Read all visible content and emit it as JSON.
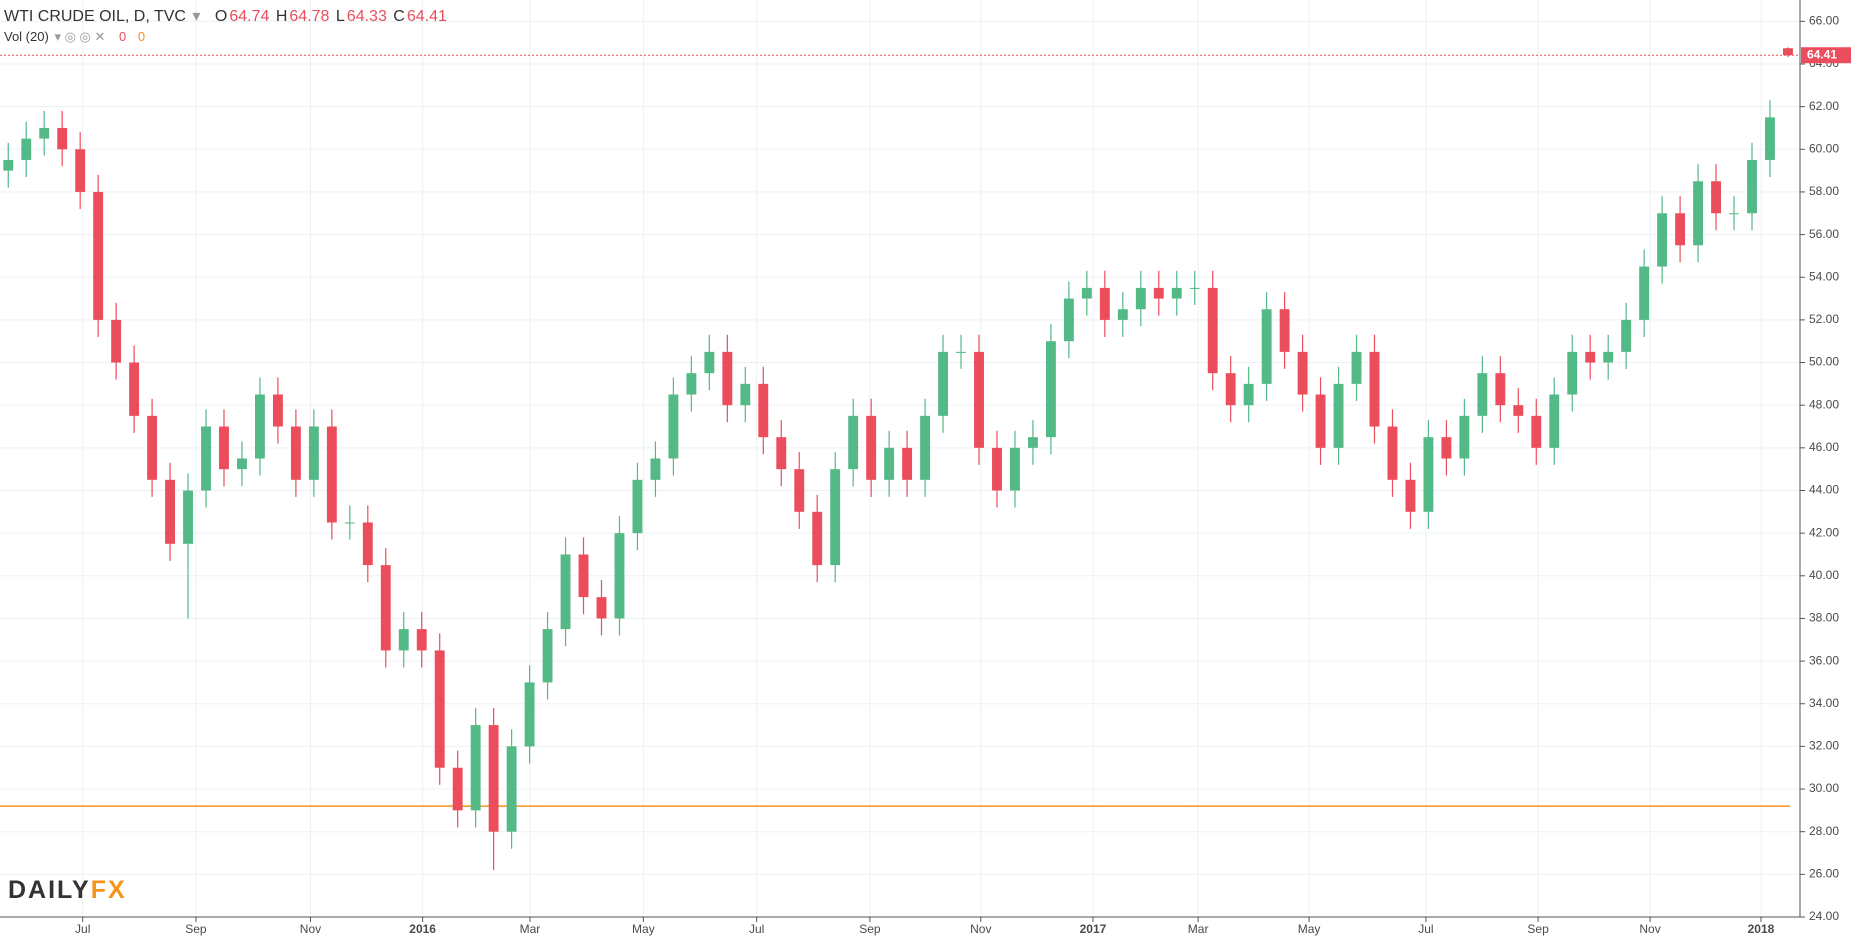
{
  "chart_data": {
    "type": "candlestick",
    "title": "WTI CRUDE OIL, D, TVC",
    "ohlc_labels": [
      "O",
      "H",
      "L",
      "C"
    ],
    "indicator": {
      "name": "Vol (20)",
      "values": [
        0,
        0
      ]
    },
    "logo": [
      "DAILY",
      "FX"
    ],
    "up_color": "#53b987",
    "down_color": "#eb4d5c",
    "last_line_color": "#eb4d5c",
    "hline": {
      "value": 29.2,
      "color": "#f7931a"
    },
    "categories": [
      null,
      null,
      null,
      null,
      null,
      null,
      null,
      null,
      null,
      null,
      null,
      null,
      null,
      null,
      null,
      null,
      null,
      null,
      null,
      null,
      null,
      null,
      null,
      null,
      null,
      null,
      null,
      null,
      null,
      null,
      null,
      null,
      null,
      null,
      null,
      null,
      null,
      null,
      null,
      null,
      null,
      null,
      null,
      null,
      null,
      null,
      null,
      null,
      null,
      null,
      null,
      null,
      null,
      null,
      null,
      null,
      null,
      null,
      null,
      null,
      null,
      null,
      null,
      null,
      null,
      null,
      null,
      null,
      null,
      null,
      null,
      null,
      null,
      null,
      null,
      null,
      null,
      null,
      null,
      null,
      null,
      null,
      null,
      null,
      null,
      null,
      null,
      null,
      null,
      null,
      null,
      null,
      null,
      null,
      null,
      null,
      null,
      null,
      null,
      null
    ],
    "open": [
      59,
      59.5,
      60.5,
      61,
      60,
      58,
      52,
      50,
      47.5,
      44.5,
      41.5,
      44,
      47,
      45,
      45.5,
      48.5,
      47,
      44.5,
      47,
      42.5,
      42.5,
      40.5,
      36.5,
      37.5,
      36.5,
      31,
      29,
      33,
      28,
      32,
      35,
      37.5,
      41,
      39,
      38,
      42,
      44.5,
      45.5,
      48.5,
      49.5,
      50.5,
      48,
      49,
      46.5,
      45,
      43,
      40.5,
      45,
      47.5,
      44.5,
      46,
      44.5,
      47.5,
      50.5,
      50.5,
      46,
      44,
      46,
      46.5,
      51,
      53,
      53.5,
      52,
      52.5,
      53.5,
      53,
      53.5,
      53.5,
      49.5,
      48,
      49,
      52.5,
      50.5,
      48.5,
      46,
      49,
      50.5,
      47,
      44.5,
      43,
      46.5,
      45.5,
      47.5,
      49.5,
      48,
      47.5,
      46,
      48.5,
      50.5,
      50,
      50.5,
      52,
      54.5,
      57,
      55.5,
      58.5,
      57,
      57,
      59.5,
      64.74
    ],
    "high": [
      60.3,
      61.3,
      61.8,
      61.8,
      60.8,
      58.8,
      52.8,
      50.8,
      48.3,
      45.3,
      44.8,
      47.8,
      47.8,
      46.3,
      49.3,
      49.3,
      47.8,
      47.8,
      47.8,
      43.3,
      43.3,
      41.3,
      38.3,
      38.3,
      37.3,
      31.8,
      33.8,
      33.8,
      32.8,
      35.8,
      38.3,
      41.8,
      41.8,
      39.8,
      42.8,
      45.3,
      46.3,
      49.3,
      50.3,
      51.3,
      51.3,
      49.8,
      49.8,
      47.3,
      45.8,
      43.8,
      45.8,
      48.3,
      48.3,
      46.8,
      46.8,
      48.3,
      51.3,
      51.3,
      51.3,
      46.8,
      46.8,
      47.3,
      51.8,
      53.8,
      54.3,
      54.3,
      53.3,
      54.3,
      54.3,
      54.3,
      54.3,
      54.3,
      50.3,
      49.8,
      53.3,
      53.3,
      51.3,
      49.3,
      49.8,
      51.3,
      51.3,
      47.8,
      45.3,
      47.3,
      47.3,
      48.3,
      50.3,
      50.3,
      48.8,
      48.3,
      49.3,
      51.3,
      51.3,
      51.3,
      52.8,
      55.3,
      57.8,
      57.8,
      59.3,
      59.3,
      57.8,
      60.3,
      62.3,
      64.78
    ],
    "low": [
      58.2,
      58.7,
      59.7,
      59.2,
      57.2,
      51.2,
      49.2,
      46.7,
      43.7,
      40.7,
      38,
      43.2,
      44.2,
      44.2,
      44.7,
      46.2,
      43.7,
      43.7,
      41.7,
      41.7,
      39.7,
      35.7,
      35.7,
      35.7,
      30.2,
      28.2,
      28.2,
      26.2,
      27.2,
      31.2,
      34.2,
      36.7,
      38.2,
      37.2,
      37.2,
      41.2,
      43.7,
      44.7,
      47.7,
      48.7,
      47.2,
      47.2,
      45.7,
      44.2,
      42.2,
      39.7,
      39.7,
      44.2,
      43.7,
      43.7,
      43.7,
      43.7,
      46.7,
      49.7,
      45.2,
      43.2,
      43.2,
      45.2,
      45.7,
      50.2,
      52.2,
      51.2,
      51.2,
      51.7,
      52.2,
      52.2,
      52.7,
      48.7,
      47.2,
      47.2,
      48.2,
      49.7,
      47.7,
      45.2,
      45.2,
      48.2,
      46.2,
      43.7,
      42.2,
      42.2,
      44.7,
      44.7,
      46.7,
      47.2,
      46.7,
      45.2,
      45.2,
      47.7,
      49.2,
      49.2,
      49.7,
      51.2,
      53.7,
      54.7,
      54.7,
      56.2,
      56.2,
      56.2,
      58.7,
      64.33
    ],
    "close": [
      59.5,
      60.5,
      61,
      60,
      58,
      52,
      50,
      47.5,
      44.5,
      41.5,
      44,
      47,
      45,
      45.5,
      48.5,
      47,
      44.5,
      47,
      42.5,
      42.5,
      40.5,
      36.5,
      37.5,
      36.5,
      31,
      29,
      33,
      28,
      32,
      35,
      37.5,
      41,
      39,
      38,
      42,
      44.5,
      45.5,
      48.5,
      49.5,
      50.5,
      48,
      49,
      46.5,
      45,
      43,
      40.5,
      45,
      47.5,
      44.5,
      46,
      44.5,
      47.5,
      50.5,
      50.5,
      46,
      44,
      46,
      46.5,
      51,
      53,
      53.5,
      52,
      52.5,
      53.5,
      53,
      53.5,
      53.5,
      49.5,
      48,
      49,
      52.5,
      50.5,
      48.5,
      46,
      49,
      50.5,
      47,
      44.5,
      43,
      46.5,
      45.5,
      47.5,
      49.5,
      48,
      47.5,
      46,
      48.5,
      50.5,
      50,
      50.5,
      52,
      54.5,
      57,
      55.5,
      58.5,
      57,
      57,
      59.5,
      61.5,
      64.41
    ],
    "xlim": [
      -0.46,
      99.67
    ],
    "xticks": [
      {
        "value": 4.14,
        "label": "Jul"
      },
      {
        "value": 10.44,
        "label": "Sep"
      },
      {
        "value": 16.81,
        "label": "Nov"
      },
      {
        "value": 23.05,
        "label": "2016"
      },
      {
        "value": 29.02,
        "label": "Mar"
      },
      {
        "value": 35.33,
        "label": "May"
      },
      {
        "value": 41.63,
        "label": "Jul"
      },
      {
        "value": 47.93,
        "label": "Sep"
      },
      {
        "value": 54.1,
        "label": "Nov"
      },
      {
        "value": 60.34,
        "label": "2017"
      },
      {
        "value": 66.19,
        "label": "Mar"
      },
      {
        "value": 72.36,
        "label": "May"
      },
      {
        "value": 78.86,
        "label": "Jul"
      },
      {
        "value": 85.1,
        "label": "Sep"
      },
      {
        "value": 91.33,
        "label": "Nov"
      },
      {
        "value": 97.5,
        "label": "2018"
      }
    ],
    "ylim": [
      24,
      67
    ],
    "yticks": [
      {
        "value": 24,
        "label": "24.00"
      },
      {
        "value": 26,
        "label": "26.00"
      },
      {
        "value": 28,
        "label": "28.00"
      },
      {
        "value": 30,
        "label": "30.00"
      },
      {
        "value": 32,
        "label": "32.00"
      },
      {
        "value": 34,
        "label": "34.00"
      },
      {
        "value": 36,
        "label": "36.00"
      },
      {
        "value": 38,
        "label": "38.00"
      },
      {
        "value": 40,
        "label": "40.00"
      },
      {
        "value": 42,
        "label": "42.00"
      },
      {
        "value": 44,
        "label": "44.00"
      },
      {
        "value": 46,
        "label": "46.00"
      },
      {
        "value": 48,
        "label": "48.00"
      },
      {
        "value": 50,
        "label": "50.00"
      },
      {
        "value": 52,
        "label": "52.00"
      },
      {
        "value": 54,
        "label": "54.00"
      },
      {
        "value": 56,
        "label": "56.00"
      },
      {
        "value": 58,
        "label": "58.00"
      },
      {
        "value": 60,
        "label": "60.00"
      },
      {
        "value": 62,
        "label": "62.00"
      },
      {
        "value": 64,
        "label": "64.00"
      },
      {
        "value": 66,
        "label": "66.00"
      }
    ],
    "grid": true
  }
}
